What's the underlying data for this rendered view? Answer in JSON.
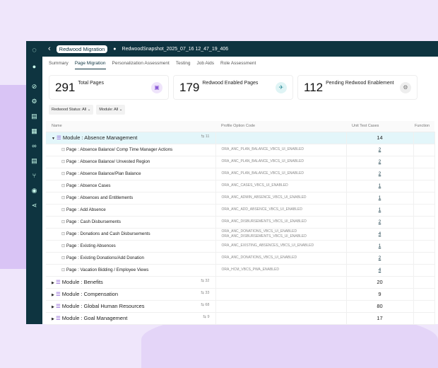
{
  "header": {
    "back": "‹",
    "app": "Redwood Migration",
    "snapshot": "RedwoodSnapshot_2025_07_16 12_47_19_406"
  },
  "tabs": [
    "Summary",
    "Page Migration",
    "Personalization Assessment",
    "Testing",
    "Job Aids",
    "Role Assessment"
  ],
  "active_tab": "Page Migration",
  "cards": [
    {
      "value": "291",
      "label": "Total Pages"
    },
    {
      "value": "179",
      "label": "Redwood Enabled Pages"
    },
    {
      "value": "112",
      "label": "Pending Redwood Enablement"
    }
  ],
  "filters": [
    "Redwood Status: All ⌄",
    "Module: All ⌄"
  ],
  "columns": [
    "Name",
    "Profile Option Code",
    "Unit Test Cases",
    "Function"
  ],
  "rows": [
    {
      "type": "module",
      "name": "Module : Absence Management",
      "count": "11",
      "code": "",
      "ut": "14",
      "expanded": true
    },
    {
      "type": "page",
      "name": "Page : Absence Balance/ Comp Time Manager Actions",
      "code": "ORA_ANC_PLAN_BALANCE_VBCS_UI_ENABLED",
      "ut": "2"
    },
    {
      "type": "page",
      "name": "Page : Absence Balance/ Unvested Region",
      "code": "ORA_ANC_PLAN_BALANCE_VBCS_UI_ENABLED",
      "ut": "2"
    },
    {
      "type": "page",
      "name": "Page : Absence Balance/Plan Balance",
      "code": "ORA_ANC_PLAN_BALANCE_VBCS_UI_ENABLED",
      "ut": "2"
    },
    {
      "type": "page",
      "name": "Page : Absence Cases",
      "code": "ORA_ANC_CASES_VBCS_UI_ENABLED",
      "ut": "1"
    },
    {
      "type": "page",
      "name": "Page : Absences and Entitlements",
      "code": "ORA_ANC_ADMIN_ABSENCE_VBCS_UI_ENABLED",
      "ut": "1"
    },
    {
      "type": "page",
      "name": "Page : Add Absence",
      "code": "ORA_ANC_ADD_ABSENCE_VBCS_UI_ENABLED",
      "ut": "1"
    },
    {
      "type": "page",
      "name": "Page : Cash Disbursements",
      "code": "ORA_ANC_DISBURSEMENTS_VBCS_UI_ENABLED",
      "ut": "2"
    },
    {
      "type": "page",
      "name": "Page : Donations and Cash Disbursements",
      "code": "ORA_ANC_DONATIONS_VBCS_UI_ENABLED\nORA_ANC_DISBURSEMENTS_VBCS_UI_ENABLED",
      "ut": "4"
    },
    {
      "type": "page",
      "name": "Page : Existing Absences",
      "code": "ORA_ANC_EXISTING_ABSENCES_VBCS_UI_ENABLED",
      "ut": "1"
    },
    {
      "type": "page",
      "name": "Page : Existing Donations/Add Donation",
      "code": "ORA_ANC_DONATIONS_VBCS_UI_ENABLED",
      "ut": "2"
    },
    {
      "type": "page",
      "name": "Page : Vacation Bidding / Employee Views",
      "code": "ORA_HCM_VBCS_PWA_ENABLED",
      "ut": "4"
    },
    {
      "type": "module",
      "name": "Module : Benefits",
      "count": "32",
      "code": "",
      "ut": "20"
    },
    {
      "type": "module",
      "name": "Module : Compensation",
      "count": "33",
      "code": "",
      "ut": "9"
    },
    {
      "type": "module",
      "name": "Module : Global Human Resources",
      "count": "68",
      "code": "",
      "ut": "80"
    },
    {
      "type": "module",
      "name": "Module : Goal Management",
      "count": "9",
      "code": "",
      "ut": "17"
    }
  ],
  "colors": {
    "dark": "#0e3440",
    "highlight": "#e3f6fa",
    "background": "#efe6fb"
  }
}
